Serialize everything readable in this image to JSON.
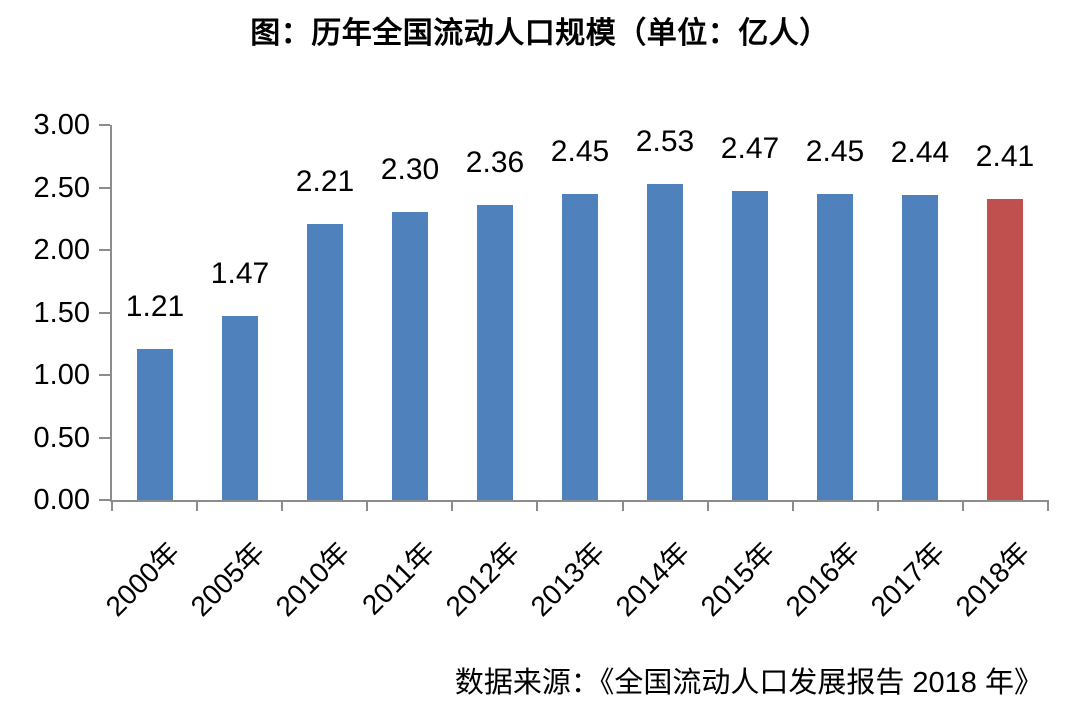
{
  "chart_data": {
    "type": "bar",
    "title": "图：历年全国流动人口规模（单位：亿人）",
    "source_note": "数据来源：《全国流动人口发展报告 2018 年》",
    "categories": [
      "2000年",
      "2005年",
      "2010年",
      "2011年",
      "2012年",
      "2013年",
      "2014年",
      "2015年",
      "2016年",
      "2017年",
      "2018年"
    ],
    "values": [
      1.21,
      1.47,
      2.21,
      2.3,
      2.36,
      2.45,
      2.53,
      2.47,
      2.45,
      2.44,
      2.41
    ],
    "value_labels": [
      "1.21",
      "1.47",
      "2.21",
      "2.30",
      "2.36",
      "2.45",
      "2.53",
      "2.47",
      "2.45",
      "2.44",
      "2.41"
    ],
    "highlight_index": 10,
    "xlabel": "",
    "ylabel": "",
    "ylim": [
      0,
      3
    ],
    "yticks": [
      "3.00",
      "2.50",
      "2.00",
      "1.50",
      "1.00",
      "0.50",
      "0.00"
    ],
    "grid": false,
    "legend": "none",
    "colors": {
      "bar": "#4F81BD",
      "highlight": "#C0504D",
      "axis": "#8C8C8C",
      "text": "#000000",
      "background": "#FFFFFF"
    }
  }
}
